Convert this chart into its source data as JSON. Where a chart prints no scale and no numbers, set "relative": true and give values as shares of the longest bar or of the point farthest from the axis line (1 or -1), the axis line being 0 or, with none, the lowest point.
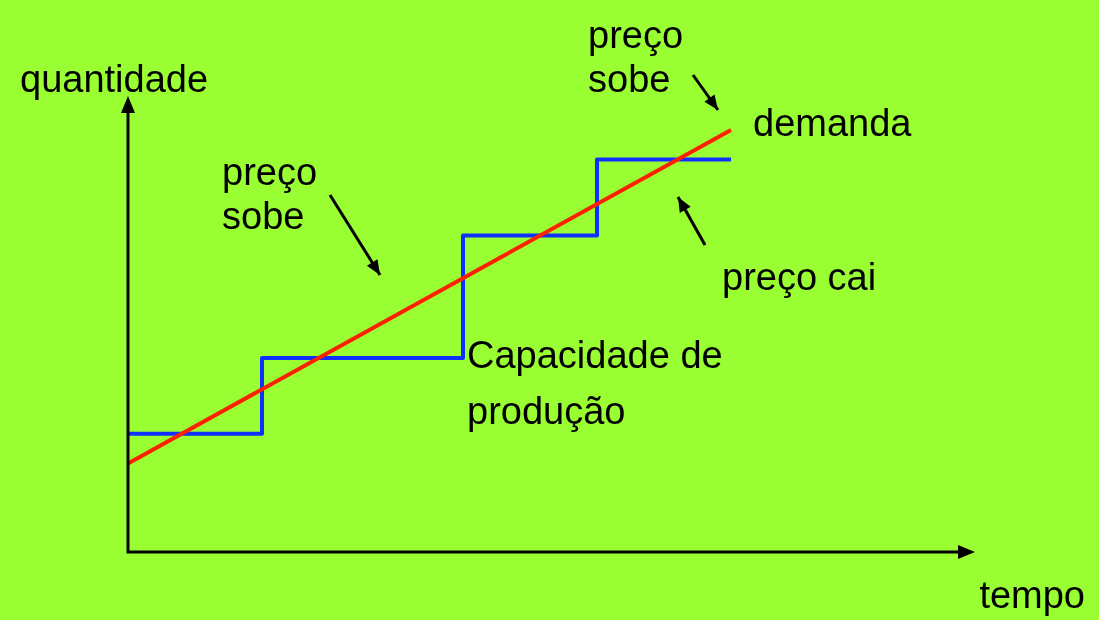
{
  "chart_data": {
    "type": "line",
    "relative": true,
    "tick_labels": false,
    "xlabel": "tempo",
    "ylabel": "quantidade",
    "categories": [
      null,
      null,
      null,
      null,
      null,
      null,
      null,
      null,
      null,
      null,
      null,
      null,
      null
    ],
    "series": [
      {
        "name": "demanda",
        "type": "line",
        "color": "#ff2000",
        "values": [
          0.21,
          null,
          null,
          null,
          null,
          null,
          null,
          null,
          null,
          1,
          null,
          null,
          null
        ]
      },
      {
        "name": "Capacidade de produção",
        "type": "step",
        "color": "#1030ff",
        "values": [
          0.28,
          null,
          0.46,
          null,
          null,
          0.75,
          null,
          0.93,
          null,
          0.93,
          null,
          null,
          null
        ]
      }
    ],
    "annotations": [
      "preço sobe",
      "preço sobe",
      "preço cai"
    ]
  }
}
